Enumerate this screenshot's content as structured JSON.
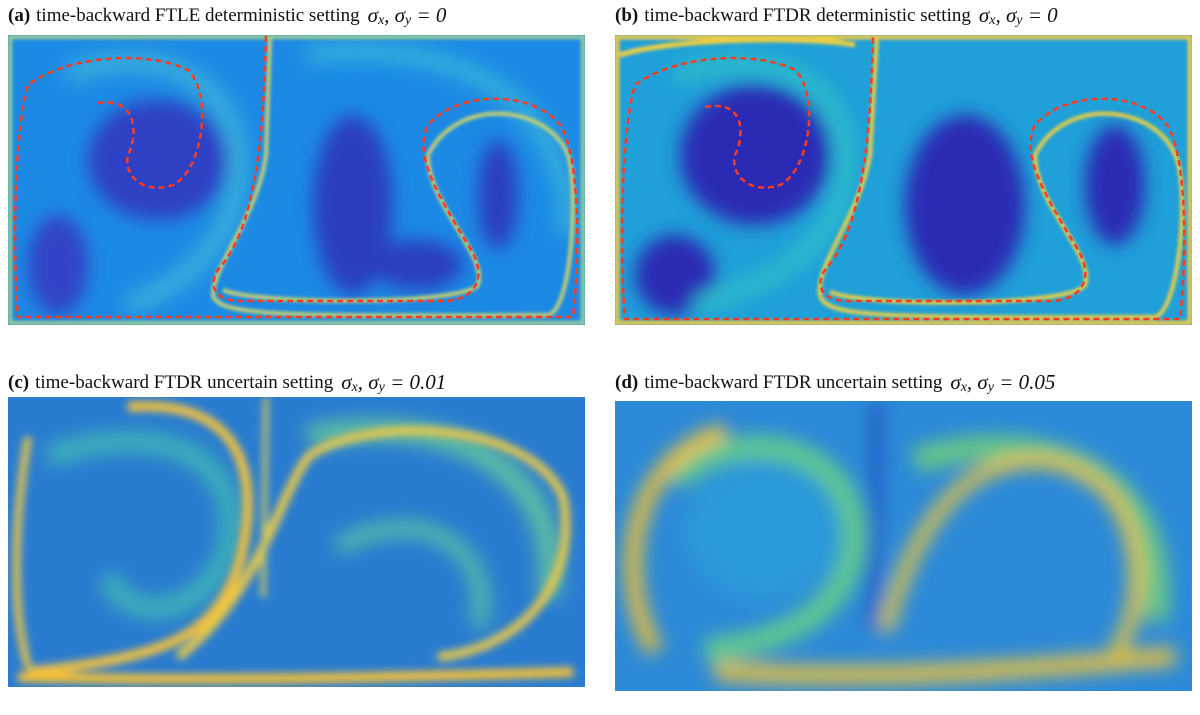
{
  "panels": [
    {
      "label": "(a)",
      "title": "time-backward FTLE  deterministic setting",
      "math": [
        "σ",
        "x",
        ", σ",
        "y",
        " = 0"
      ]
    },
    {
      "label": "(b)",
      "title": "time-backward FTDR  deterministic setting",
      "math": [
        "σ",
        "x",
        ", σ",
        "y",
        " = 0"
      ]
    },
    {
      "label": "(c)",
      "title": "time-backward FTDR  uncertain setting",
      "math": [
        "σ",
        "x",
        ", σ",
        "y",
        " = 0.01"
      ]
    },
    {
      "label": "(d)",
      "title": "time-backward FTDR   uncertain setting",
      "math": [
        "σ",
        "x",
        ", σ",
        "y",
        " = 0.05"
      ]
    }
  ]
}
